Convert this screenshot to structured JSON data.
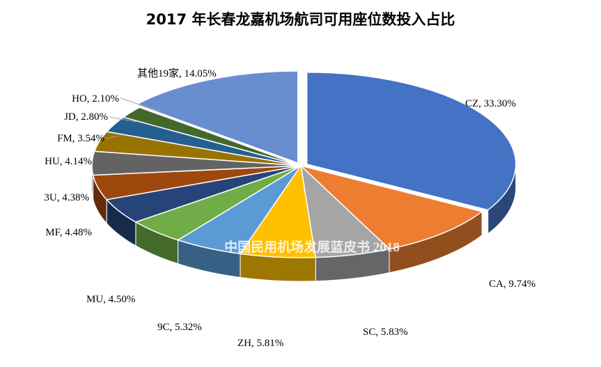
{
  "chart_data": {
    "type": "pie",
    "title": "2017 年长春龙嘉机场航司可用座位数投入占比",
    "watermark": "中国民用机场发展蓝皮书 2018",
    "slices": [
      {
        "name": "CZ",
        "value": 33.3,
        "label": "CZ, 33.30%",
        "color": "#4472C4"
      },
      {
        "name": "CA",
        "value": 9.74,
        "label": "CA, 9.74%",
        "color": "#ED7D31"
      },
      {
        "name": "SC",
        "value": 5.83,
        "label": "SC, 5.83%",
        "color": "#A5A5A5"
      },
      {
        "name": "ZH",
        "value": 5.81,
        "label": "ZH, 5.81%",
        "color": "#FFC000"
      },
      {
        "name": "9C",
        "value": 5.32,
        "label": "9C, 5.32%",
        "color": "#5B9BD5"
      },
      {
        "name": "MU",
        "value": 4.5,
        "label": "MU, 4.50%",
        "color": "#70AD47"
      },
      {
        "name": "MF",
        "value": 4.48,
        "label": "MF, 4.48%",
        "color": "#264478"
      },
      {
        "name": "3U",
        "value": 4.38,
        "label": "3U, 4.38%",
        "color": "#9E480E"
      },
      {
        "name": "HU",
        "value": 4.14,
        "label": "HU, 4.14%",
        "color": "#636363"
      },
      {
        "name": "FM",
        "value": 3.54,
        "label": "FM, 3.54%",
        "color": "#997300"
      },
      {
        "name": "JD",
        "value": 2.8,
        "label": "JD, 2.80%",
        "color": "#255E91"
      },
      {
        "name": "HO",
        "value": 2.1,
        "label": "HO, 2.10%",
        "color": "#43682B"
      },
      {
        "name": "其他19家",
        "value": 14.05,
        "label": "其他19家, 14.05%",
        "color": "#698ED0"
      }
    ]
  }
}
